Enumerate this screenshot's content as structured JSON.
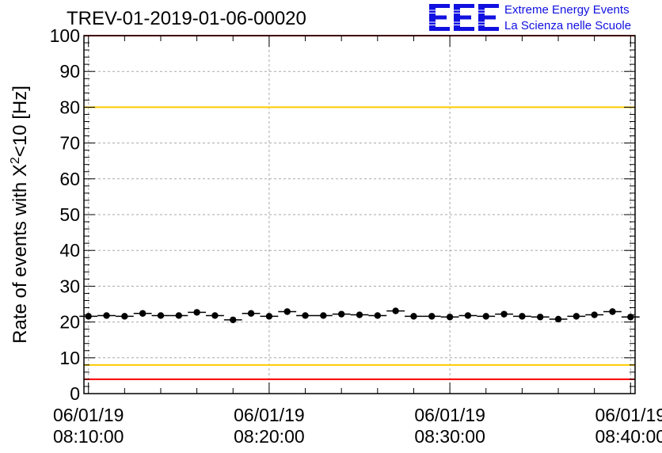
{
  "title": "TREV-01-2019-01-06-00020",
  "logo": {
    "mark": "EEE",
    "line1": "Extreme Energy Events",
    "line2": "La Scienza nelle Scuole",
    "color": "#1010e0"
  },
  "chart_data": {
    "type": "scatter",
    "title": "TREV-01-2019-01-06-00020",
    "xlabel": "",
    "ylabel": "Rate of events with X²<10 [Hz]",
    "ylabel_parts": {
      "pre": "Rate of events with X",
      "sup": "2",
      "post": "<10 [Hz]"
    },
    "xlim": [
      "06/01/19 08:09:45",
      "06/01/19 08:40:15"
    ],
    "ylim": [
      0,
      100
    ],
    "y_ticks": [
      0,
      10,
      20,
      30,
      40,
      50,
      60,
      70,
      80,
      90,
      100
    ],
    "x_ticks": [
      {
        "date": "06/01/19",
        "time": "08:10:00",
        "t": "08:10:00"
      },
      {
        "date": "06/01/19",
        "time": "08:20:00",
        "t": "08:20:00"
      },
      {
        "date": "06/01/19",
        "time": "08:30:00",
        "t": "08:30:00"
      },
      {
        "date": "06/01/19",
        "time": "08:40:00",
        "t": "08:40:00"
      }
    ],
    "grid": true,
    "reference_lines": [
      {
        "y": 4,
        "color": "#ff0000"
      },
      {
        "y": 8,
        "color": "#ffcc00"
      },
      {
        "y": 80,
        "color": "#ffcc00"
      },
      {
        "y": 100,
        "color": "#ff0000"
      }
    ],
    "series": [
      {
        "x": [
          "08:10:00",
          "08:11:00",
          "08:12:00",
          "08:13:00",
          "08:14:00",
          "08:15:00",
          "08:16:00",
          "08:17:00",
          "08:18:00",
          "08:19:00",
          "08:20:00",
          "08:21:00",
          "08:22:00",
          "08:23:00",
          "08:24:00",
          "08:25:00",
          "08:26:00",
          "08:27:00",
          "08:28:00",
          "08:29:00",
          "08:30:00",
          "08:31:00",
          "08:32:00",
          "08:33:00",
          "08:34:00",
          "08:35:00",
          "08:36:00",
          "08:37:00",
          "08:38:00",
          "08:39:00",
          "08:40:00"
        ],
        "values": [
          21.6,
          21.8,
          21.6,
          22.4,
          21.8,
          21.8,
          22.7,
          21.8,
          20.6,
          22.4,
          21.6,
          22.9,
          21.8,
          21.8,
          22.2,
          22.0,
          21.8,
          23.1,
          21.6,
          21.6,
          21.4,
          21.8,
          21.6,
          22.2,
          21.6,
          21.4,
          20.8,
          21.6,
          22.0,
          22.9,
          21.4
        ],
        "error": 0.5,
        "color": "#000000"
      }
    ]
  }
}
